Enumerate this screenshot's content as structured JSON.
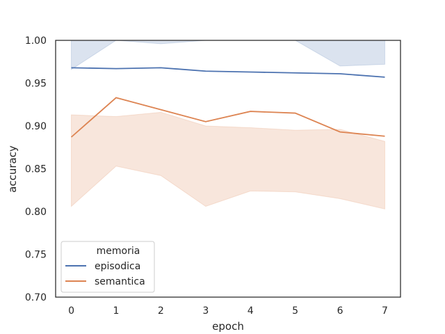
{
  "chart_data": {
    "type": "line",
    "xlabel": "epoch",
    "ylabel": "accuracy",
    "x": [
      0,
      1,
      2,
      3,
      4,
      5,
      6,
      7
    ],
    "xlim": [
      -0.35,
      7.35
    ],
    "ylim": [
      0.7,
      1.0
    ],
    "xticks": [
      "0",
      "1",
      "2",
      "3",
      "4",
      "5",
      "6",
      "7"
    ],
    "yticks": [
      "0.70",
      "0.75",
      "0.80",
      "0.85",
      "0.90",
      "0.95",
      "1.00"
    ],
    "grid": false,
    "legend": {
      "title": "memoria",
      "placement": "lower-left"
    },
    "series": [
      {
        "name": "episodica",
        "color": "#4c72b0",
        "values": [
          0.968,
          0.967,
          0.968,
          0.964,
          0.963,
          0.962,
          0.961,
          0.957
        ],
        "upper": [
          1.02,
          1.02,
          1.02,
          1.02,
          1.02,
          1.02,
          1.02,
          1.02
        ],
        "lower": [
          0.966,
          1.0,
          0.996,
          1.0,
          1.0,
          1.0,
          0.97,
          0.972
        ]
      },
      {
        "name": "semantica",
        "color": "#dd8452",
        "values": [
          0.887,
          0.933,
          0.919,
          0.905,
          0.917,
          0.915,
          0.893,
          0.888
        ],
        "upper": [
          0.913,
          0.911,
          0.916,
          0.9,
          0.898,
          0.895,
          0.896,
          0.882
        ],
        "lower": [
          0.806,
          0.853,
          0.842,
          0.806,
          0.824,
          0.823,
          0.815,
          0.803
        ]
      }
    ]
  }
}
